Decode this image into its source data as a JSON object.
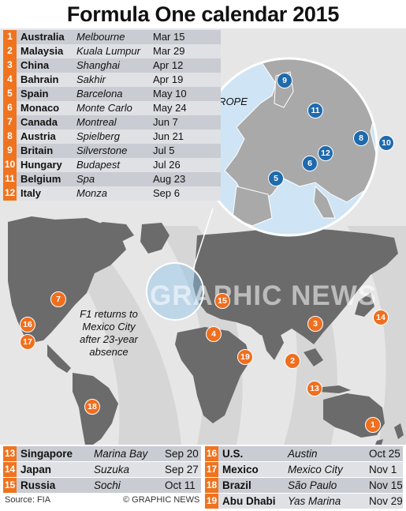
{
  "title": "Formula One calendar 2015",
  "europe_label": "EUROPE",
  "watermark": "GRAPHIC NEWS",
  "note_lines": [
    "F1 returns to",
    "Mexico City",
    "after 23-year",
    "absence"
  ],
  "races": [
    {
      "num": "1",
      "country": "Australia",
      "city": "Melbourne",
      "date": "Mar 15"
    },
    {
      "num": "2",
      "country": "Malaysia",
      "city": "Kuala Lumpur",
      "date": "Mar 29"
    },
    {
      "num": "3",
      "country": "China",
      "city": "Shanghai",
      "date": "Apr 12"
    },
    {
      "num": "4",
      "country": "Bahrain",
      "city": "Sakhir",
      "date": "Apr 19"
    },
    {
      "num": "5",
      "country": "Spain",
      "city": "Barcelona",
      "date": "May 10"
    },
    {
      "num": "6",
      "country": "Monaco",
      "city": "Monte Carlo",
      "date": "May 24"
    },
    {
      "num": "7",
      "country": "Canada",
      "city": "Montreal",
      "date": "Jun 7"
    },
    {
      "num": "8",
      "country": "Austria",
      "city": "Spielberg",
      "date": "Jun 21"
    },
    {
      "num": "9",
      "country": "Britain",
      "city": "Silverstone",
      "date": "Jul 5"
    },
    {
      "num": "10",
      "country": "Hungary",
      "city": "Budapest",
      "date": "Jul 26"
    },
    {
      "num": "11",
      "country": "Belgium",
      "city": "Spa",
      "date": "Aug 23"
    },
    {
      "num": "12",
      "country": "Italy",
      "city": "Monza",
      "date": "Sep 6"
    },
    {
      "num": "13",
      "country": "Singapore",
      "city": "Marina Bay",
      "date": "Sep 20"
    },
    {
      "num": "14",
      "country": "Japan",
      "city": "Suzuka",
      "date": "Sep 27"
    },
    {
      "num": "15",
      "country": "Russia",
      "city": "Sochi",
      "date": "Oct 11"
    },
    {
      "num": "16",
      "country": "U.S.",
      "city": "Austin",
      "date": "Oct 25"
    },
    {
      "num": "17",
      "country": "Mexico",
      "city": "Mexico City",
      "date": "Nov 1"
    },
    {
      "num": "18",
      "country": "Brazil",
      "city": "São Paulo",
      "date": "Nov 15"
    },
    {
      "num": "19",
      "country": "Abu Dhabi",
      "city": "Yas Marina",
      "date": "Nov 29"
    }
  ],
  "footer": {
    "source": "Source: FIA",
    "credit": "© GRAPHIC NEWS"
  },
  "colors": {
    "marker_orange": "#ef6f1f",
    "marker_blue": "#1e6aad",
    "land": "#6b6b6b",
    "inset_sea": "#cfe4f4",
    "inset_land": "#a9a9a9"
  }
}
